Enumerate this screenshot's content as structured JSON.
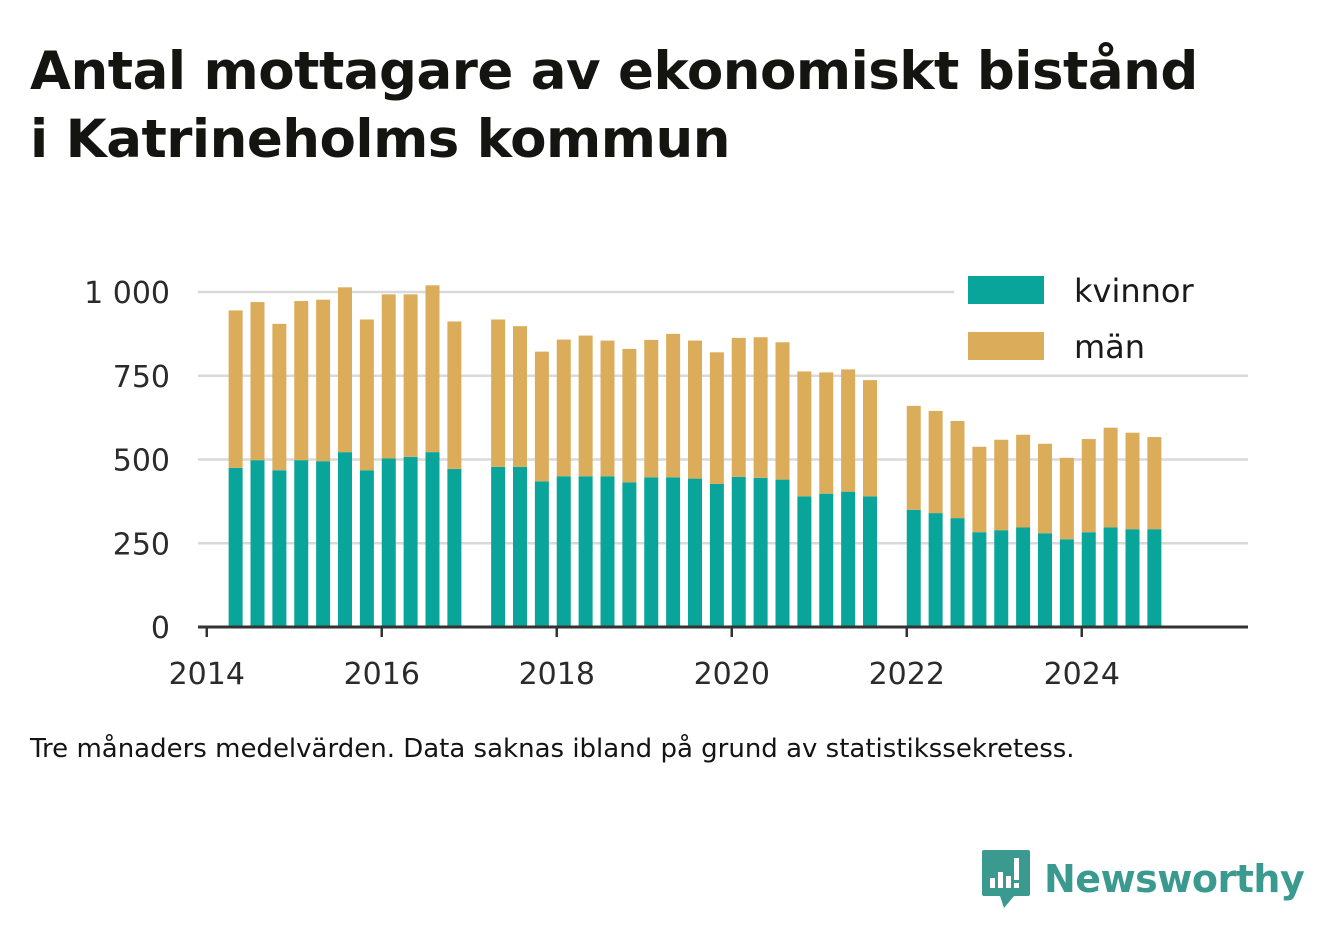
{
  "title_line1": "Antal mottagare av ekonomiskt bistånd",
  "title_line2": "i Katrineholms kommun",
  "footnote": "Tre månaders medelvärden. Data saknas ibland på grund av statistikssekretess.",
  "brand": "Newsworthy",
  "colors": {
    "kvinnor": "#0aa59a",
    "man": "#dbad5b",
    "grid": "#d9d9d9",
    "axis": "#333333",
    "brand": "#3b9a90"
  },
  "chart_data": {
    "type": "bar",
    "stacked": true,
    "x_unit": "year",
    "xlim": [
      2013.9,
      2025.9
    ],
    "ylim": [
      0,
      1000
    ],
    "yticks": [
      0,
      250,
      500,
      750,
      1000
    ],
    "ytick_labels": [
      "0",
      "250",
      "500",
      "750",
      "1 000"
    ],
    "xticks": [
      2014,
      2016,
      2018,
      2020,
      2022,
      2024
    ],
    "xtick_labels": [
      "2014",
      "2016",
      "2018",
      "2020",
      "2022",
      "2024"
    ],
    "grid": true,
    "legend_position": "top-right",
    "x": [
      2014.33,
      2014.58,
      2014.83,
      2015.08,
      2015.33,
      2015.58,
      2015.83,
      2016.08,
      2016.33,
      2016.58,
      2016.83,
      2017.33,
      2017.58,
      2017.83,
      2018.08,
      2018.33,
      2018.58,
      2018.83,
      2019.08,
      2019.33,
      2019.58,
      2019.83,
      2020.08,
      2020.33,
      2020.58,
      2020.83,
      2021.08,
      2021.33,
      2021.58,
      2022.08,
      2022.33,
      2022.58,
      2022.83,
      2023.08,
      2023.33,
      2023.58,
      2023.83,
      2024.08,
      2024.33,
      2024.58,
      2024.83
    ],
    "series": [
      {
        "name": "kvinnor",
        "values": [
          475,
          498,
          468,
          498,
          495,
          522,
          468,
          503,
          508,
          522,
          472,
          478,
          478,
          435,
          450,
          450,
          450,
          432,
          447,
          447,
          443,
          427,
          448,
          445,
          440,
          390,
          398,
          404,
          390,
          350,
          340,
          325,
          283,
          289,
          297,
          280,
          262,
          283,
          297,
          292,
          292
        ]
      },
      {
        "name": "män",
        "values": [
          470,
          472,
          437,
          475,
          482,
          492,
          450,
          490,
          485,
          498,
          440,
          440,
          420,
          387,
          408,
          420,
          405,
          398,
          410,
          428,
          412,
          393,
          415,
          420,
          410,
          373,
          362,
          365,
          347,
          310,
          305,
          290,
          255,
          270,
          277,
          267,
          243,
          278,
          298,
          288,
          275
        ]
      }
    ]
  }
}
